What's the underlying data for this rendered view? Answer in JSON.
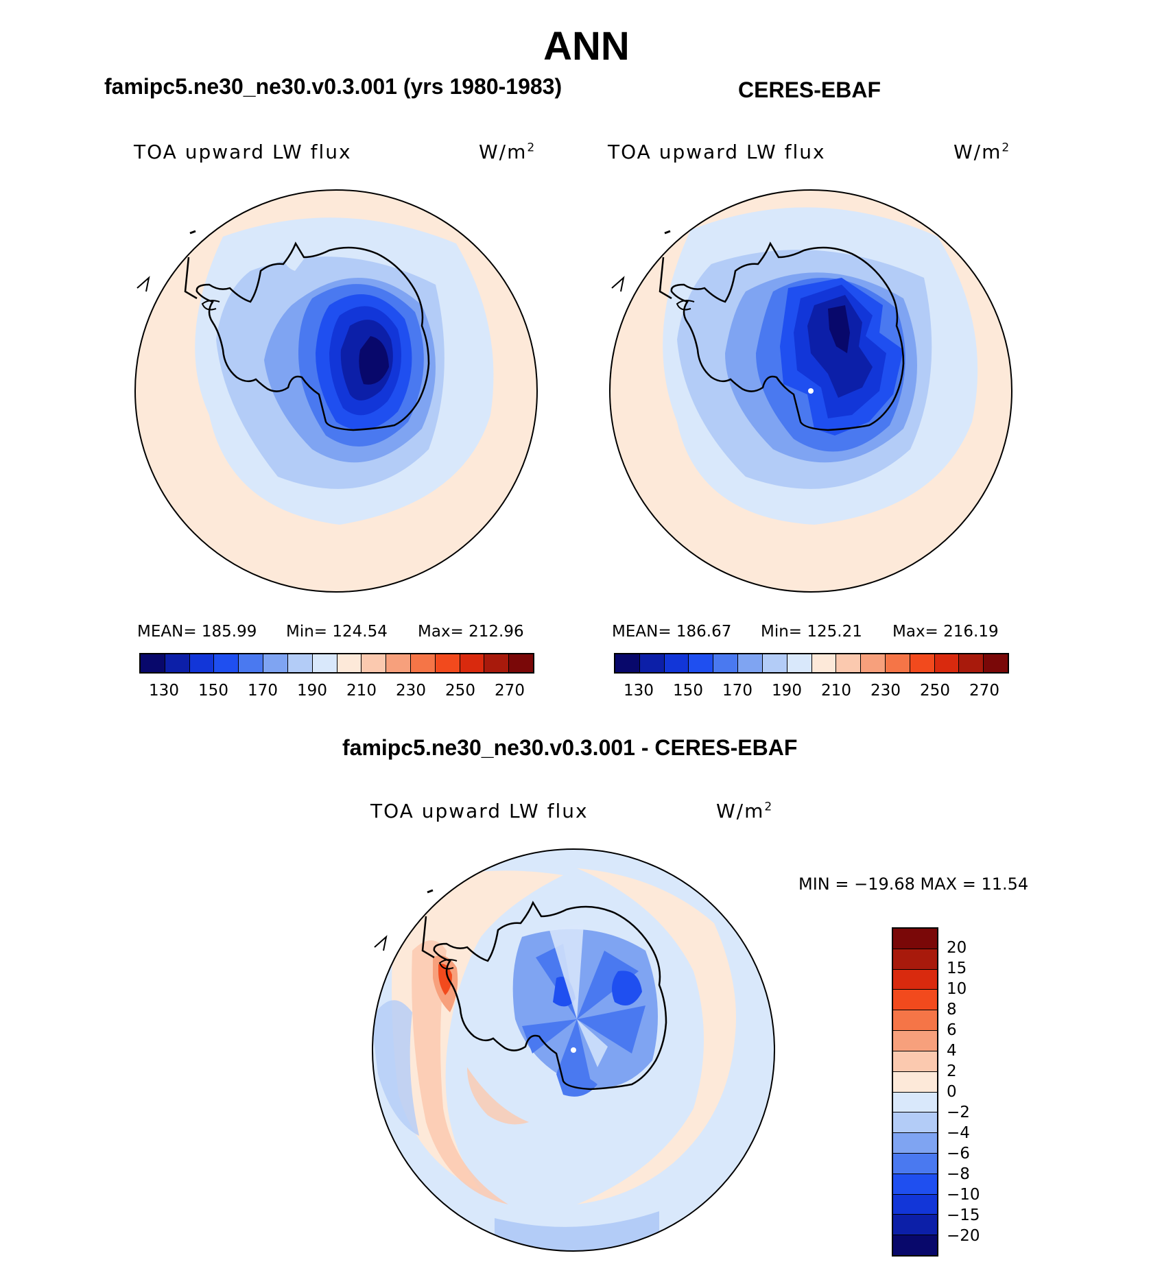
{
  "title": "ANN",
  "panels": {
    "model": {
      "title": "famipc5.ne30_ne30.v0.3.001 (yrs 1980-1983)",
      "variable": "TOA upward LW flux",
      "units_base": "W/m",
      "units_exp": "2",
      "mean_label": "MEAN=",
      "mean": "185.99",
      "min_label": "Min=",
      "min": "124.54",
      "max_label": "Max=",
      "max": "212.96"
    },
    "obs": {
      "title": "CERES-EBAF",
      "variable": "TOA upward LW flux",
      "units_base": "W/m",
      "units_exp": "2",
      "mean_label": "MEAN=",
      "mean": "186.67",
      "min_label": "Min=",
      "min": "125.21",
      "max_label": "Max=",
      "max": "216.19"
    },
    "diff": {
      "title": "famipc5.ne30_ne30.v0.3.001 - CERES-EBAF",
      "variable": "TOA upward LW flux",
      "units_base": "W/m",
      "units_exp": "2",
      "minmax_text": "MIN = −19.68 MAX =   11.54"
    }
  },
  "abs_colorbar": {
    "colors": [
      "#08086b",
      "#0c1fa8",
      "#1236d8",
      "#1f4ff0",
      "#4a79f0",
      "#7fa4f2",
      "#b3ccf7",
      "#d9e8fb",
      "#fde9d9",
      "#fbc9af",
      "#f7a07c",
      "#f57547",
      "#f24a1d",
      "#d92a0e",
      "#a81a0c",
      "#7a0808"
    ],
    "ticks": [
      "130",
      "150",
      "170",
      "190",
      "210",
      "230",
      "250",
      "270"
    ]
  },
  "diff_colorbar": {
    "colors": [
      "#7a0808",
      "#a81a0c",
      "#d92a0e",
      "#f24a1d",
      "#f57547",
      "#f7a07c",
      "#fbc9af",
      "#fde9d9",
      "#d9e8fb",
      "#b3ccf7",
      "#7fa4f2",
      "#4a79f0",
      "#1f4ff0",
      "#1236d8",
      "#0c1fa8",
      "#08086b"
    ],
    "ticks": [
      "20",
      "15",
      "10",
      "8",
      "6",
      "4",
      "2",
      "0",
      "−2",
      "−4",
      "−6",
      "−8",
      "−10",
      "−15",
      "−20"
    ]
  }
}
